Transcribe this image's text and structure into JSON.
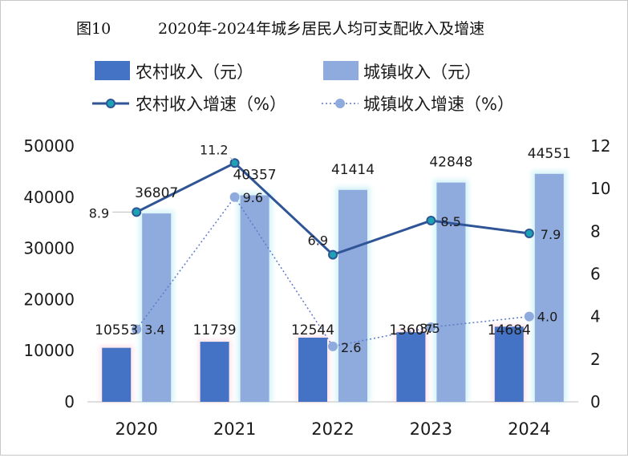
{
  "chart_data": {
    "type": "bar",
    "title_prefix": "图10",
    "title": "2020年-2024年城乡居民人均可支配收入及增速",
    "categories": [
      "2020",
      "2021",
      "2022",
      "2023",
      "2024"
    ],
    "series": [
      {
        "name": "农村收入（元）",
        "kind": "bar",
        "axis": "left",
        "color": "#4472c4",
        "values": [
          10553,
          11739,
          12544,
          13607,
          14684
        ]
      },
      {
        "name": "城镇收入（元）",
        "kind": "bar",
        "axis": "left",
        "color": "#8faadc",
        "values": [
          36807,
          40357,
          41414,
          42848,
          44551
        ]
      },
      {
        "name": "农村收入增速（%）",
        "kind": "line",
        "axis": "right",
        "color": "#2f5597",
        "values": [
          8.9,
          11.2,
          6.9,
          8.5,
          7.9
        ]
      },
      {
        "name": "城镇收入增速（%）",
        "kind": "dotted-line",
        "axis": "right",
        "color": "#5b7bc8",
        "values": [
          3.4,
          9.6,
          2.6,
          3.5,
          4.0
        ]
      }
    ],
    "left_axis": {
      "range": [
        0,
        50000
      ],
      "ticks": [
        "0",
        "10000",
        "20000",
        "30000",
        "40000",
        "50000"
      ]
    },
    "right_axis": {
      "range": [
        0,
        12
      ],
      "ticks": [
        "0",
        "2",
        "4",
        "6",
        "8",
        "10",
        "12"
      ]
    },
    "legend_position": "top",
    "grid": false
  }
}
